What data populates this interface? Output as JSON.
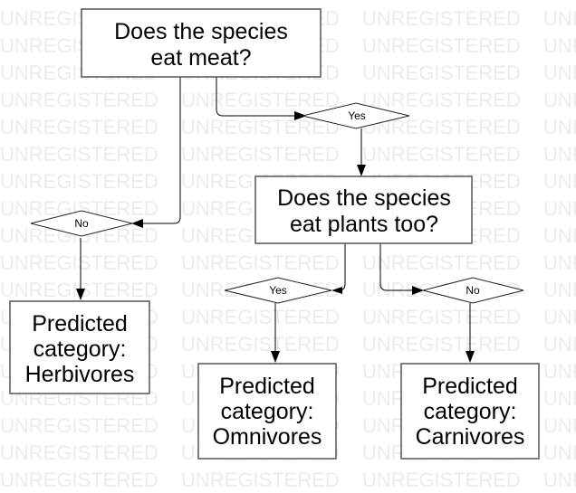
{
  "watermark": "UNREGISTERED",
  "nodes": {
    "q_meat": [
      "Does the species",
      "eat meat?"
    ],
    "q_plants": [
      "Does the species",
      "eat plants too?"
    ],
    "out_herbivores": [
      "Predicted",
      "category:",
      "Herbivores"
    ],
    "out_omnivores": [
      "Predicted",
      "category:",
      "Omnivores"
    ],
    "out_carnivores": [
      "Predicted",
      "category:",
      "Carnivores"
    ]
  },
  "decisions": {
    "meat_yes": "Yes",
    "meat_no": "No",
    "plants_yes": "Yes",
    "plants_no": "No"
  },
  "colors": {
    "box_border": "#555555",
    "line": "#000000",
    "watermark": "#ebebeb",
    "background": "#ffffff"
  }
}
